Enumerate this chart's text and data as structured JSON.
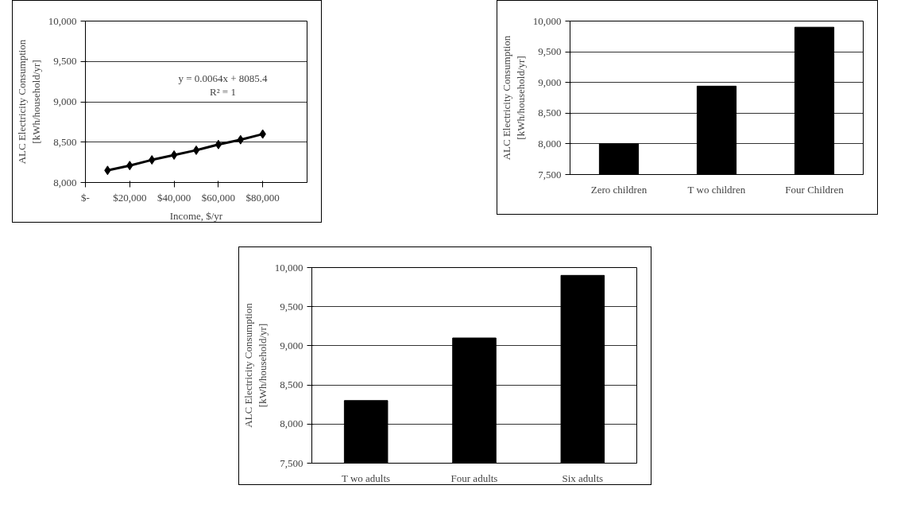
{
  "chart_data": [
    {
      "type": "line",
      "x": [
        10000,
        20000,
        30000,
        40000,
        50000,
        60000,
        70000,
        80000
      ],
      "series": [
        {
          "color": "#000000",
          "values": [
            8150,
            8210,
            8280,
            8340,
            8400,
            8470,
            8530,
            8600
          ]
        }
      ],
      "xlabel": "Income, $/yr",
      "ylabel": "ALC Electricity Consumption\n[kWh/household/yr]",
      "xlim": [
        0,
        100000
      ],
      "xticks": [
        {
          "value": 0,
          "label": "$-"
        },
        {
          "value": 20000,
          "label": "$20,000"
        },
        {
          "value": 40000,
          "label": "$40,000"
        },
        {
          "value": 60000,
          "label": "$60,000"
        },
        {
          "value": 80000,
          "label": "$80,000"
        }
      ],
      "ylim": [
        8000,
        10000
      ],
      "yticks": [
        {
          "value": 8000,
          "label": "8,000"
        },
        {
          "value": 8500,
          "label": "8,500"
        },
        {
          "value": 9000,
          "label": "9,000"
        },
        {
          "value": 9500,
          "label": "9,500"
        },
        {
          "value": 10000,
          "label": "10,000"
        }
      ],
      "grid": "y",
      "marker": "diamond",
      "annotations": [
        "y = 0.0064x + 8085.4",
        "R² = 1"
      ]
    },
    {
      "type": "bar",
      "categories": [
        "Zero children",
        "T wo children",
        "Four Children"
      ],
      "series": [
        {
          "color": "#000000",
          "values": [
            8000,
            8940,
            9900
          ]
        }
      ],
      "ylabel": "ALC Electricity Consumption\n[kWh/household/yr]",
      "ylim": [
        7500,
        10000
      ],
      "yticks": [
        {
          "value": 7500,
          "label": "7,500"
        },
        {
          "value": 8000,
          "label": "8,000"
        },
        {
          "value": 8500,
          "label": "8,500"
        },
        {
          "value": 9000,
          "label": "9,000"
        },
        {
          "value": 9500,
          "label": "9,500"
        },
        {
          "value": 10000,
          "label": "10,000"
        }
      ],
      "grid": "y"
    },
    {
      "type": "bar",
      "categories": [
        "T wo adults",
        "Four adults",
        "Six adults"
      ],
      "series": [
        {
          "color": "#000000",
          "values": [
            8300,
            9100,
            9900
          ]
        }
      ],
      "ylabel": "ALC Electricity Consumption\n[kWh/household/yr]",
      "ylim": [
        7500,
        10000
      ],
      "yticks": [
        {
          "value": 7500,
          "label": "7,500"
        },
        {
          "value": 8000,
          "label": "8,000"
        },
        {
          "value": 8500,
          "label": "8,500"
        },
        {
          "value": 9000,
          "label": "9,000"
        },
        {
          "value": 9500,
          "label": "9,500"
        },
        {
          "value": 10000,
          "label": "10,000"
        }
      ],
      "grid": "y"
    }
  ]
}
